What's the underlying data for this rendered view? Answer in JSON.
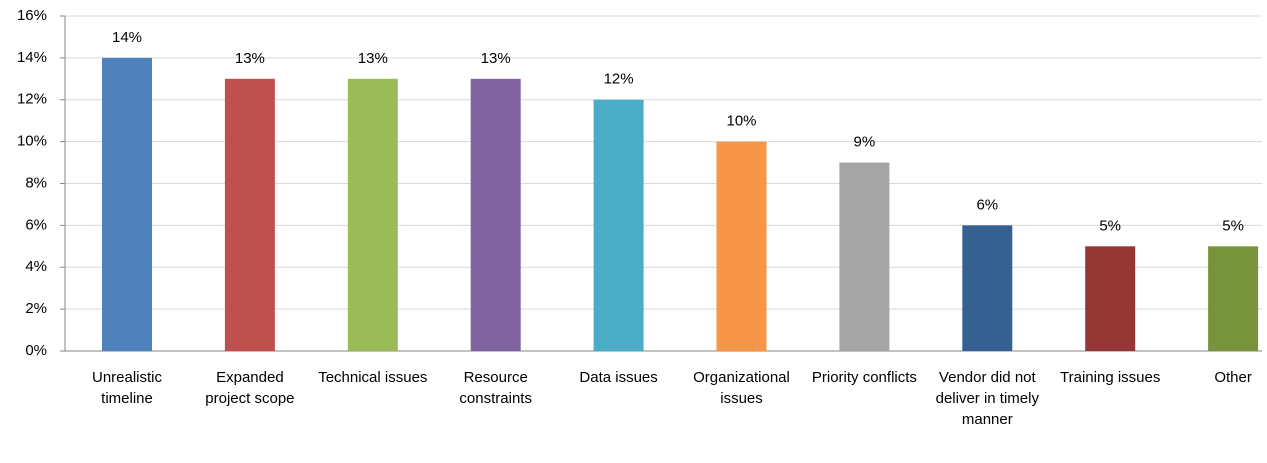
{
  "chart_data": {
    "type": "bar",
    "categories": [
      "Unrealistic timeline",
      "Expanded project scope",
      "Technical issues",
      "Resource constraints",
      "Data issues",
      "Organizational issues",
      "Priority conflicts",
      "Vendor did not deliver in timely manner",
      "Training issues",
      "Other"
    ],
    "values": [
      14,
      13,
      13,
      13,
      12,
      10,
      9,
      6,
      5,
      5
    ],
    "value_labels": [
      "14%",
      "13%",
      "13%",
      "13%",
      "12%",
      "10%",
      "9%",
      "6%",
      "5%",
      "5%"
    ],
    "colors": [
      "#4f81bd",
      "#c0504d",
      "#9bbb59",
      "#8064a2",
      "#4bacc6",
      "#f79646",
      "#a5a5a5",
      "#366092",
      "#953735",
      "#77933c"
    ],
    "ylim": [
      0,
      16
    ],
    "yticks": [
      {
        "value": 0,
        "label": "0%"
      },
      {
        "value": 2,
        "label": "2%"
      },
      {
        "value": 4,
        "label": "4%"
      },
      {
        "value": 6,
        "label": "6%"
      },
      {
        "value": 8,
        "label": "8%"
      },
      {
        "value": 10,
        "label": "10%"
      },
      {
        "value": 12,
        "label": "12%"
      },
      {
        "value": 14,
        "label": "14%"
      },
      {
        "value": 16,
        "label": "16%"
      }
    ],
    "grid": true
  }
}
